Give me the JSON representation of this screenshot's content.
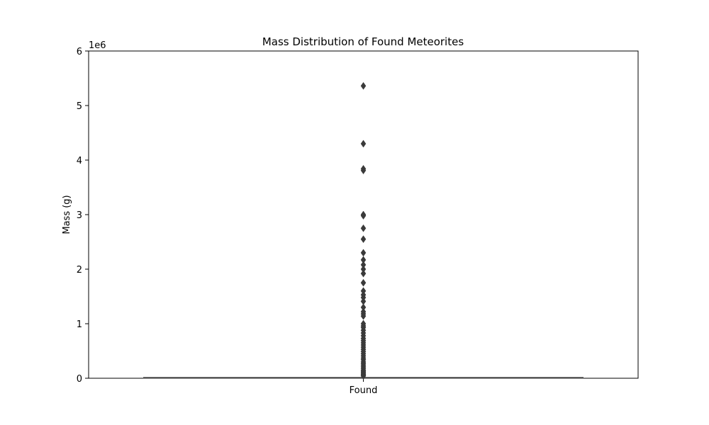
{
  "chart_data": {
    "type": "box",
    "title": "Mass Distribution of Found Meteorites",
    "xlabel": "",
    "ylabel": "Mass (g)",
    "categories": [
      "Found"
    ],
    "y_scale_label": "1e6",
    "ylim": [
      0,
      6000000
    ],
    "yticks": [
      {
        "value": 0,
        "label": "0"
      },
      {
        "value": 1000000,
        "label": "1"
      },
      {
        "value": 2000000,
        "label": "2"
      },
      {
        "value": 3000000,
        "label": "3"
      },
      {
        "value": 4000000,
        "label": "4"
      },
      {
        "value": 5000000,
        "label": "5"
      },
      {
        "value": 6000000,
        "label": "6"
      }
    ],
    "grid": false,
    "box": {
      "q1": 0,
      "median": 10000,
      "q3": 15000,
      "whisker_low": 0,
      "whisker_high": 30000
    },
    "outliers": [
      5360000,
      4300000,
      3840000,
      3810000,
      3000000,
      2980000,
      2750000,
      2550000,
      2300000,
      2170000,
      2080000,
      2000000,
      1920000,
      1750000,
      1600000,
      1530000,
      1480000,
      1410000,
      1300000,
      1220000,
      1180000,
      1140000,
      1000000,
      960000,
      930000,
      880000,
      830000,
      780000,
      730000,
      690000,
      650000,
      610000,
      570000,
      530000,
      490000,
      450000,
      410000,
      370000,
      340000,
      300000,
      270000,
      240000,
      210000,
      180000,
      150000,
      130000,
      110000,
      90000,
      70000,
      55000,
      42000
    ],
    "colors": {
      "box": "#3a3a3a",
      "outlier": "#3a3a3a",
      "axis": "#000000"
    }
  }
}
